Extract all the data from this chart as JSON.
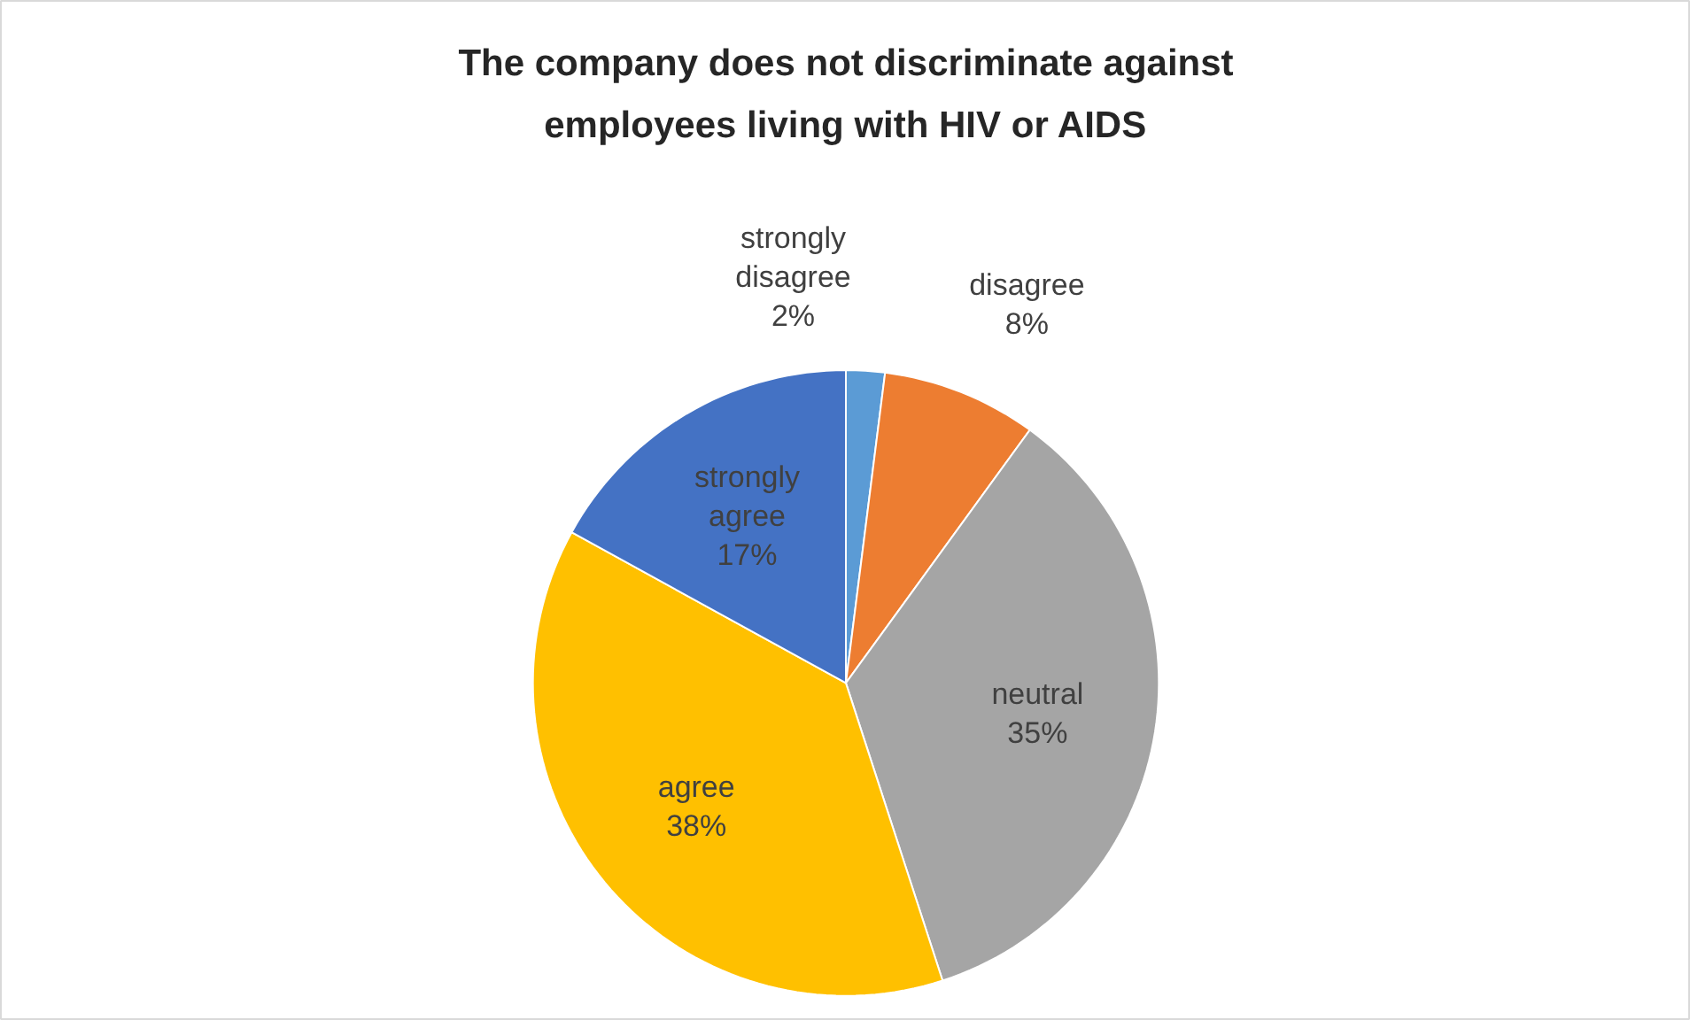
{
  "chart_data": {
    "type": "pie",
    "title": "The company does not discriminate against employees living with HIV or AIDS",
    "categories": [
      "strongly disagree",
      "disagree",
      "neutral",
      "agree",
      "strongly agree"
    ],
    "values": [
      2,
      8,
      35,
      38,
      17
    ],
    "value_labels": [
      "2%",
      "8%",
      "35%",
      "38%",
      "17%"
    ],
    "colors": [
      "#5b9bd5",
      "#ed7d31",
      "#a5a5a5",
      "#ffc000",
      "#4472c4"
    ],
    "data_labels": true
  }
}
